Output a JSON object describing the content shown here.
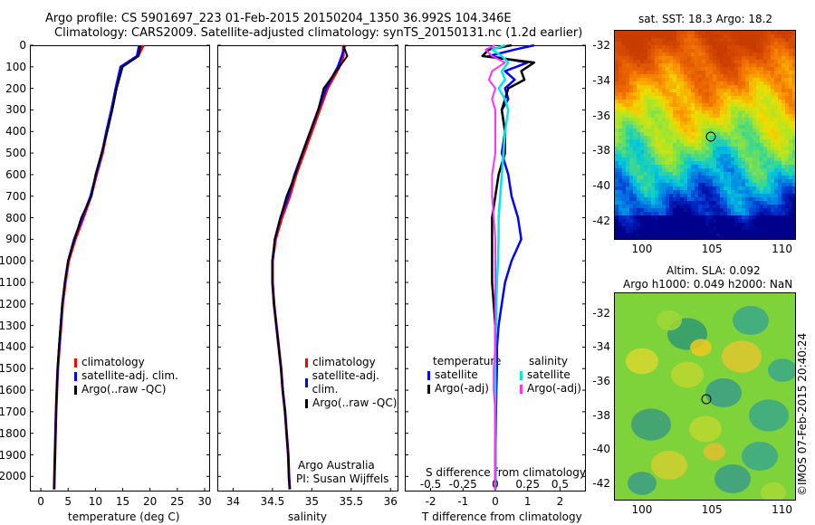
{
  "header": {
    "line1": "Argo profile: CS 5901697_223 01-Feb-2015 20150204_1350 36.992S 104.346E",
    "line2": "Climatology: CARS2009. Satellite-adjusted climatology: synTS_20150131.nc (1.2d earlier)"
  },
  "depth_ticks": [
    "0",
    "100",
    "200",
    "300",
    "400",
    "500",
    "600",
    "700",
    "800",
    "900",
    "1000",
    "1100",
    "1200",
    "1300",
    "1400",
    "1500",
    "1600",
    "1700",
    "1800",
    "1900",
    "2000"
  ],
  "colors": {
    "climatology": "#ff0000",
    "satellite": "#0000ff",
    "argo": "#000000",
    "sat_salinity": "#00e5e5",
    "argo_salinity": "#ff33ff"
  },
  "temp_panel": {
    "xlabel": "temperature (deg C)",
    "xticks": [
      "0",
      "5",
      "10",
      "15",
      "20",
      "25",
      "30"
    ],
    "legend": [
      "climatology",
      "satellite-adj. clim.",
      "Argo(..raw -QC)"
    ]
  },
  "sal_panel": {
    "xlabel": "salinity",
    "xticks": [
      "34",
      "34.5",
      "35",
      "35.5",
      "36"
    ],
    "legend": [
      "climatology",
      "satellite-adj. clim.",
      "Argo(..raw -QC)"
    ],
    "credit1": "Argo Australia",
    "credit2": "PI: Susan Wijffels"
  },
  "diff_panel": {
    "xlabel": "T difference from climatology",
    "top_label": "S difference from climatology",
    "xticks": [
      "-2",
      "-1",
      "0",
      "1",
      "2"
    ],
    "s_ticks": [
      "-0.5",
      "-0.25",
      "0",
      "0.25",
      "0.5"
    ],
    "legend_temp_title": "temperature",
    "legend_sal_title": "salinity",
    "legend_temp": [
      "satellite",
      "Argo(-adj)"
    ],
    "legend_sal": [
      "satellite",
      "Argo(-adj)"
    ]
  },
  "sst_map": {
    "title": "sat. SST: 18.3 Argo: 18.2",
    "yticks": [
      "-32",
      "-34",
      "-36",
      "-38",
      "-40",
      "-42"
    ],
    "xticks": [
      "100",
      "105",
      "110"
    ]
  },
  "sla_map": {
    "title1": "Altim. SLA: 0.092",
    "title2": "Argo h1000: 0.049 h2000: NaN",
    "yticks": [
      "-32",
      "-34",
      "-36",
      "-38",
      "-40",
      "-42"
    ],
    "xticks": [
      "100",
      "105",
      "110"
    ]
  },
  "stamp": "©IMOS 07-Feb-2015 20:40:24",
  "chart_data": [
    {
      "type": "line",
      "xlabel": "temperature (deg C)",
      "ylabel": "",
      "xlim": [
        -2,
        31
      ],
      "ylim": [
        2070,
        0
      ],
      "depth": [
        0,
        50,
        100,
        200,
        300,
        400,
        500,
        600,
        700,
        800,
        900,
        1000,
        1100,
        1200,
        1300,
        1400,
        1500,
        1600,
        1700,
        1800,
        1900,
        2000,
        2060
      ],
      "series": [
        {
          "name": "climatology",
          "values": [
            18.8,
            17.8,
            14.8,
            13.8,
            13.0,
            12.1,
            11.3,
            10.2,
            9.2,
            7.8,
            6.3,
            5.1,
            4.5,
            4.0,
            3.7,
            3.4,
            3.1,
            2.95,
            2.8,
            2.7,
            2.6,
            2.5,
            2.45
          ]
        },
        {
          "name": "satellite-adj. clim.",
          "values": [
            18.0,
            17.6,
            14.6,
            13.7,
            12.9,
            12.0,
            11.2,
            10.1,
            9.1,
            7.6,
            6.1,
            5.0,
            4.4,
            3.95,
            3.65,
            3.35,
            3.1,
            2.95,
            2.8,
            2.7,
            2.6,
            2.5,
            2.45
          ]
        },
        {
          "name": "Argo(..raw -QC)",
          "values": [
            18.3,
            17.9,
            15.0,
            13.9,
            13.1,
            12.2,
            11.1,
            10.0,
            9.3,
            7.4,
            6.2,
            5.0,
            4.4,
            3.9,
            3.6,
            3.3,
            3.05,
            2.9,
            2.8,
            2.7,
            2.6,
            2.5,
            2.45
          ]
        }
      ]
    },
    {
      "type": "line",
      "xlabel": "salinity",
      "ylabel": "",
      "xlim": [
        33.8,
        36.1
      ],
      "ylim": [
        2070,
        0
      ],
      "depth": [
        0,
        50,
        100,
        200,
        300,
        400,
        500,
        600,
        700,
        800,
        900,
        1000,
        1100,
        1200,
        1300,
        1400,
        1500,
        1600,
        1700,
        1800,
        1900,
        2000,
        2060
      ],
      "series": [
        {
          "name": "climatology",
          "values": [
            35.4,
            35.4,
            35.35,
            35.2,
            35.1,
            35.0,
            34.9,
            34.8,
            34.72,
            34.62,
            34.54,
            34.5,
            34.5,
            34.52,
            34.55,
            34.58,
            34.61,
            34.63,
            34.66,
            34.68,
            34.7,
            34.71,
            34.72
          ]
        },
        {
          "name": "satellite-adj. clim.",
          "values": [
            35.42,
            35.38,
            35.33,
            35.18,
            35.08,
            34.98,
            34.88,
            34.78,
            34.7,
            34.6,
            34.53,
            34.5,
            34.5,
            34.52,
            34.55,
            34.58,
            34.61,
            34.63,
            34.66,
            34.68,
            34.7,
            34.71,
            34.72
          ]
        },
        {
          "name": "Argo(..raw -QC)",
          "values": [
            35.4,
            35.45,
            35.35,
            35.15,
            35.08,
            34.98,
            34.88,
            34.79,
            34.68,
            34.6,
            34.53,
            34.5,
            34.5,
            34.52,
            34.55,
            34.58,
            34.61,
            34.63,
            34.66,
            34.68,
            34.7,
            34.71,
            34.72
          ]
        }
      ]
    },
    {
      "type": "line",
      "xlabel": "T difference from climatology",
      "ylabel": "",
      "xlim": [
        -2.8,
        2.8
      ],
      "ylim": [
        2070,
        0
      ],
      "depth": [
        0,
        20,
        50,
        80,
        120,
        160,
        200,
        250,
        300,
        400,
        500,
        600,
        700,
        800,
        900,
        1000,
        1100,
        1200,
        1300,
        1400,
        1500,
        1600,
        1700,
        1800,
        1900,
        2000,
        2060
      ],
      "series": [
        {
          "name": "temperature satellite",
          "values": [
            1.2,
            0.6,
            -0.2,
            1.0,
            0.3,
            0.6,
            0.3,
            0.4,
            0.2,
            0.3,
            0.2,
            0.4,
            0.5,
            0.7,
            0.8,
            0.5,
            0.3,
            0.2,
            0.1,
            0.05,
            0.05,
            0.03,
            0.02,
            0.01,
            0.0,
            0.0,
            0.0
          ]
        },
        {
          "name": "temperature Argo(-adj)",
          "values": [
            0.5,
            -0.2,
            -0.4,
            1.2,
            0.8,
            0.9,
            0.4,
            0.3,
            0.2,
            0.3,
            0.3,
            0.1,
            0.0,
            -0.1,
            -0.1,
            -0.1,
            -0.1,
            -0.05,
            0.0,
            0.0,
            0.0,
            0.0,
            0.0,
            0.0,
            0.0,
            0.0,
            0.0
          ]
        },
        {
          "name": "salinity satellite",
          "values": [
            0.3,
            -0.1,
            0.2,
            0.4,
            0.2,
            0.3,
            0.1,
            0.3,
            0.4,
            0.3,
            0.25,
            0.2,
            0.15,
            0.1,
            0.1,
            0.08,
            0.05,
            0.03,
            0.02,
            0.0,
            0.0,
            0.0,
            0.0,
            0.0,
            0.0,
            0.0,
            0.0
          ]
        },
        {
          "name": "salinity Argo(-adj)",
          "values": [
            0.0,
            -0.3,
            -0.1,
            0.3,
            -0.1,
            -0.2,
            0.0,
            -0.1,
            0.0,
            0.0,
            0.0,
            -0.1,
            -0.1,
            -0.05,
            0.0,
            0.0,
            0.0,
            0.0,
            0.0,
            0.0,
            -0.05,
            -0.05,
            0.0,
            0.0,
            0.0,
            0.0,
            0.0
          ]
        }
      ]
    }
  ]
}
